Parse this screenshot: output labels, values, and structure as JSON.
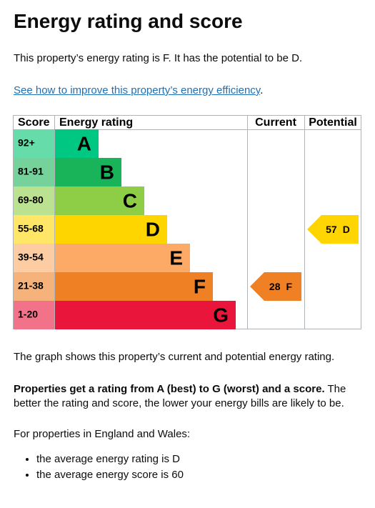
{
  "heading": "Energy rating and score",
  "intro": "This property’s energy rating is F. It has the potential to be D.",
  "link": {
    "text": "See how to improve this property’s energy efficiency",
    "end": "."
  },
  "rating_table": {
    "headers": [
      "Score",
      "Energy rating",
      "Current",
      "Potential"
    ],
    "bands": [
      {
        "score": "92+",
        "letter": "A",
        "color": "#00c781",
        "score_color": "#66dcab"
      },
      {
        "score": "81-91",
        "letter": "B",
        "color": "#19b459",
        "score_color": "#75d29b"
      },
      {
        "score": "69-80",
        "letter": "C",
        "color": "#8dce46",
        "score_color": "#bbe290"
      },
      {
        "score": "55-68",
        "letter": "D",
        "color": "#ffd500",
        "score_color": "#ffe666"
      },
      {
        "score": "39-54",
        "letter": "E",
        "color": "#fcaa65",
        "score_color": "#fdcca3"
      },
      {
        "score": "21-38",
        "letter": "F",
        "color": "#ef8023",
        "score_color": "#f5b37b"
      },
      {
        "score": "1-20",
        "letter": "G",
        "color": "#e9153b",
        "score_color": "#f27389"
      }
    ],
    "current": {
      "score": 28,
      "letter": "F"
    },
    "potential": {
      "score": 57,
      "letter": "D"
    }
  },
  "graph_note": "The graph shows this property’s current and potential energy rating.",
  "rating_note": {
    "bold": "Properties get a rating from A (best) to G (worst) and a score.",
    "text": " The better the rating and score, the lower your energy bills are likely to be."
  },
  "regional": {
    "intro": "For properties in England and Wales:",
    "items": [
      "the average energy rating is D",
      "the average energy score is 60"
    ]
  }
}
